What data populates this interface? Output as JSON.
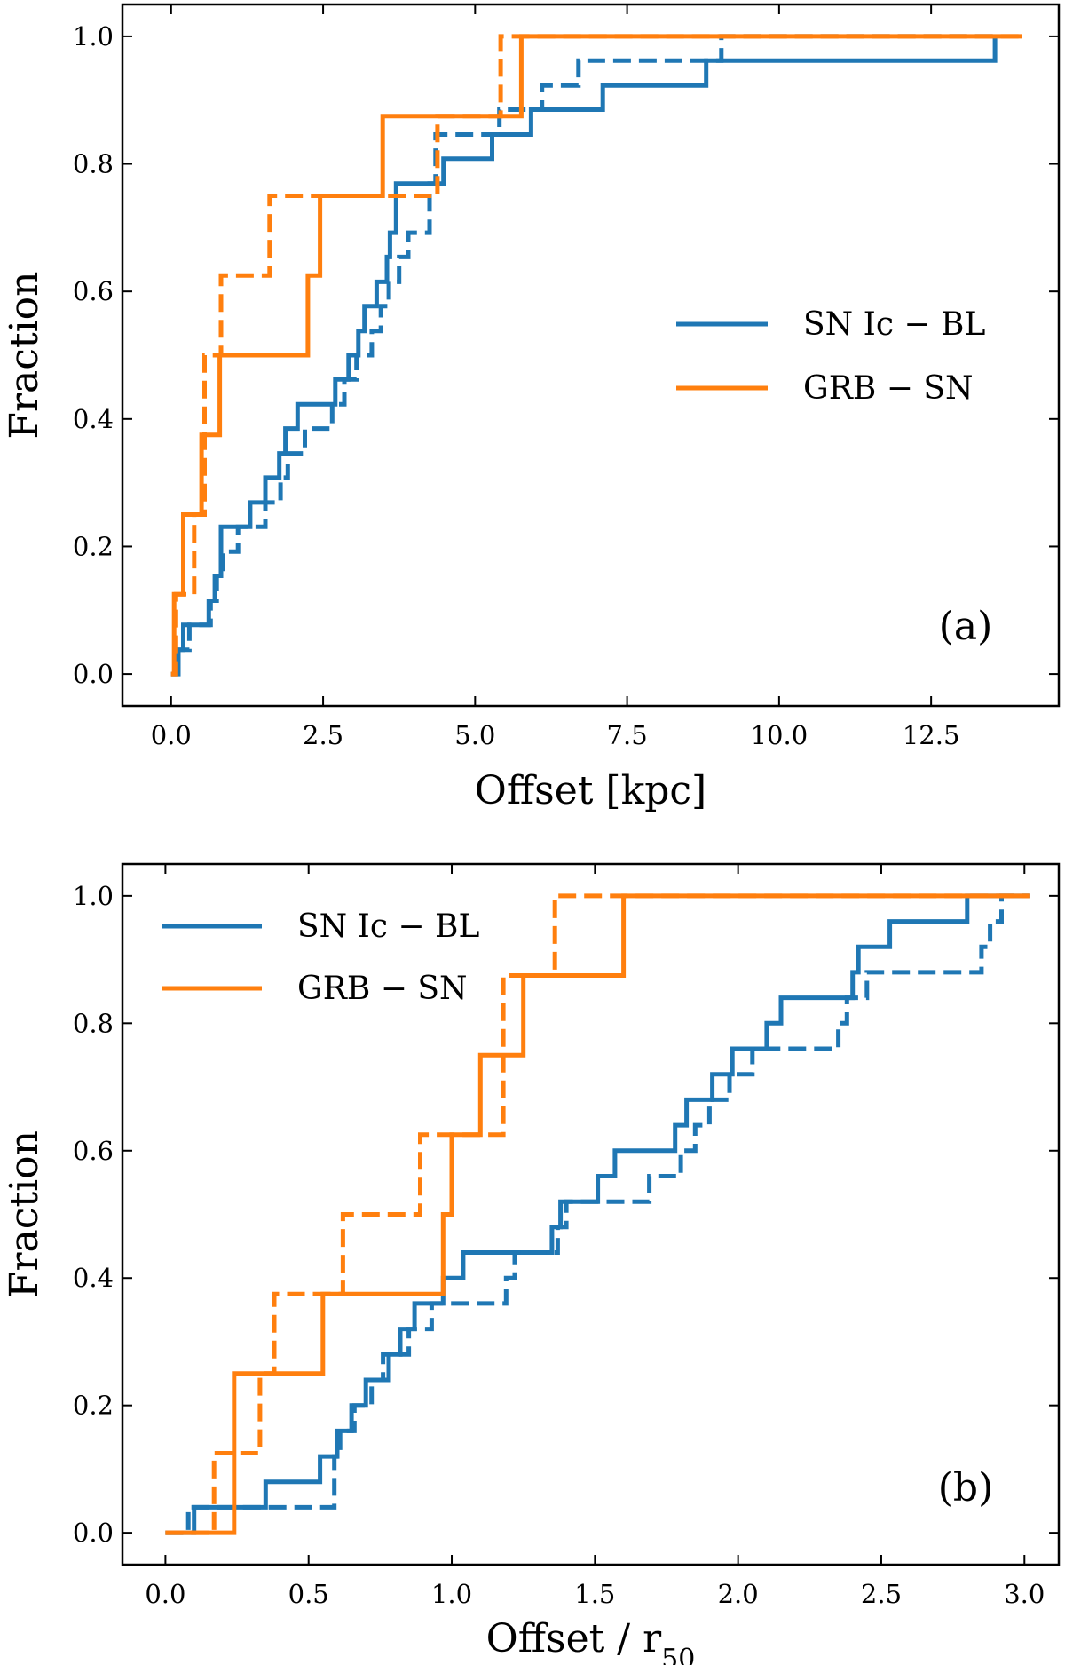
{
  "chart_data": [
    {
      "type": "line",
      "subtype": "step-cdf",
      "panel_label": "(a)",
      "xlabel": "Offset [kpc]",
      "ylabel": "Fraction",
      "xlim": [
        -0.8,
        14.6
      ],
      "ylim": [
        -0.05,
        1.05
      ],
      "xticks": [
        0.0,
        2.5,
        5.0,
        7.5,
        10.0,
        12.5
      ],
      "xtick_labels": [
        "0.0",
        "2.5",
        "5.0",
        "7.5",
        "10.0",
        "12.5"
      ],
      "yticks": [
        0.0,
        0.2,
        0.4,
        0.6,
        0.8,
        1.0
      ],
      "ytick_labels": [
        "0.0",
        "0.2",
        "0.4",
        "0.6",
        "0.8",
        "1.0"
      ],
      "legend": {
        "position": "center-right",
        "entries": [
          {
            "label": "SN Ic − BL",
            "color": "#1f77b4"
          },
          {
            "label": "GRB − SN",
            "color": "#ff7f0e"
          }
        ]
      },
      "series": [
        {
          "name": "SN Ic − BL",
          "style": "solid",
          "color": "#1f77b4",
          "x": [
            0.0,
            0.12,
            0.2,
            0.62,
            0.72,
            0.82,
            1.3,
            1.55,
            1.78,
            1.88,
            2.08,
            2.7,
            2.92,
            3.08,
            3.18,
            3.38,
            3.55,
            3.6,
            3.7,
            3.82,
            4.48,
            5.28,
            5.45,
            5.92,
            7.1,
            8.8,
            13.55
          ],
          "y": [
            0.0,
            0.038,
            0.077,
            0.115,
            0.154,
            0.231,
            0.269,
            0.308,
            0.346,
            0.385,
            0.423,
            0.462,
            0.5,
            0.538,
            0.577,
            0.615,
            0.654,
            0.692,
            0.769,
            0.769,
            0.808,
            0.846,
            0.846,
            0.885,
            0.923,
            0.962,
            1.0
          ]
        },
        {
          "name": "SN Ic − BL",
          "style": "dashed",
          "color": "#1f77b4",
          "x": [
            0.0,
            0.08,
            0.3,
            0.65,
            0.75,
            0.85,
            1.1,
            1.55,
            1.8,
            1.92,
            2.2,
            2.65,
            2.85,
            3.05,
            3.3,
            3.45,
            3.58,
            3.75,
            3.9,
            4.25,
            4.35,
            5.4,
            6.1,
            6.7,
            9.05,
            13.55
          ],
          "y": [
            0.0,
            0.038,
            0.077,
            0.115,
            0.154,
            0.192,
            0.231,
            0.269,
            0.308,
            0.346,
            0.385,
            0.423,
            0.462,
            0.5,
            0.538,
            0.577,
            0.615,
            0.654,
            0.692,
            0.769,
            0.846,
            0.885,
            0.923,
            0.962,
            1.0,
            1.0
          ]
        },
        {
          "name": "GRB − SN",
          "style": "solid",
          "color": "#ff7f0e",
          "x": [
            0.0,
            0.05,
            0.2,
            0.5,
            0.8,
            2.25,
            2.45,
            3.48,
            5.76,
            14.0
          ],
          "y": [
            0.0,
            0.125,
            0.25,
            0.375,
            0.5,
            0.625,
            0.75,
            0.875,
            1.0,
            1.0
          ]
        },
        {
          "name": "GRB − SN",
          "style": "dashed",
          "color": "#ff7f0e",
          "x": [
            0.0,
            0.08,
            0.38,
            0.55,
            0.82,
            1.62,
            4.38,
            5.42,
            14.0
          ],
          "y": [
            0.0,
            0.125,
            0.25,
            0.5,
            0.625,
            0.75,
            0.875,
            1.0,
            1.0
          ]
        }
      ]
    },
    {
      "type": "line",
      "subtype": "step-cdf",
      "panel_label": "(b)",
      "xlabel": "Offset / r",
      "xlabel_subscript": "50",
      "ylabel": "Fraction",
      "xlim": [
        -0.15,
        3.12
      ],
      "ylim": [
        -0.05,
        1.05
      ],
      "xticks": [
        0.0,
        0.5,
        1.0,
        1.5,
        2.0,
        2.5,
        3.0
      ],
      "xtick_labels": [
        "0.0",
        "0.5",
        "1.0",
        "1.5",
        "2.0",
        "2.5",
        "3.0"
      ],
      "yticks": [
        0.0,
        0.2,
        0.4,
        0.6,
        0.8,
        1.0
      ],
      "ytick_labels": [
        "0.0",
        "0.2",
        "0.4",
        "0.6",
        "0.8",
        "1.0"
      ],
      "legend": {
        "position": "top-left",
        "entries": [
          {
            "label": "SN Ic − BL",
            "color": "#1f77b4"
          },
          {
            "label": "GRB − SN",
            "color": "#ff7f0e"
          }
        ]
      },
      "series": [
        {
          "name": "SN Ic − BL",
          "style": "solid",
          "color": "#1f77b4",
          "x": [
            0.0,
            0.1,
            0.35,
            0.54,
            0.6,
            0.65,
            0.7,
            0.78,
            0.82,
            0.87,
            0.97,
            1.04,
            1.35,
            1.38,
            1.51,
            1.57,
            1.78,
            1.82,
            1.91,
            1.98,
            2.01,
            2.1,
            2.15,
            2.4,
            2.42,
            2.53,
            2.8,
            2.9,
            3.02
          ],
          "y": [
            0.0,
            0.04,
            0.08,
            0.12,
            0.16,
            0.2,
            0.24,
            0.28,
            0.32,
            0.36,
            0.4,
            0.44,
            0.48,
            0.52,
            0.56,
            0.6,
            0.64,
            0.68,
            0.72,
            0.76,
            0.76,
            0.8,
            0.84,
            0.88,
            0.92,
            0.96,
            1.0,
            1.0,
            1.0
          ]
        },
        {
          "name": "SN Ic − BL",
          "style": "dashed",
          "color": "#1f77b4",
          "x": [
            0.0,
            0.08,
            0.59,
            0.61,
            0.66,
            0.72,
            0.76,
            0.85,
            0.93,
            1.02,
            1.19,
            1.22,
            1.37,
            1.4,
            1.69,
            1.8,
            1.85,
            1.9,
            1.97,
            2.05,
            2.35,
            2.38,
            2.45,
            2.85,
            2.88,
            2.92,
            3.02
          ],
          "y": [
            0.0,
            0.04,
            0.12,
            0.16,
            0.2,
            0.24,
            0.28,
            0.32,
            0.36,
            0.36,
            0.4,
            0.44,
            0.48,
            0.52,
            0.56,
            0.6,
            0.64,
            0.68,
            0.72,
            0.76,
            0.8,
            0.84,
            0.88,
            0.92,
            0.96,
            1.0,
            1.0
          ]
        },
        {
          "name": "GRB − SN",
          "style": "solid",
          "color": "#ff7f0e",
          "x": [
            0.0,
            0.24,
            0.55,
            0.97,
            1.0,
            1.1,
            1.25,
            1.6,
            3.02
          ],
          "y": [
            0.0,
            0.25,
            0.375,
            0.5,
            0.625,
            0.75,
            0.875,
            1.0,
            1.0
          ]
        },
        {
          "name": "GRB − SN",
          "style": "dashed",
          "color": "#ff7f0e",
          "x": [
            0.0,
            0.17,
            0.33,
            0.38,
            0.62,
            0.89,
            1.18,
            1.36,
            3.02
          ],
          "y": [
            0.0,
            0.125,
            0.25,
            0.375,
            0.5,
            0.625,
            0.875,
            1.0,
            1.0
          ]
        }
      ]
    }
  ]
}
